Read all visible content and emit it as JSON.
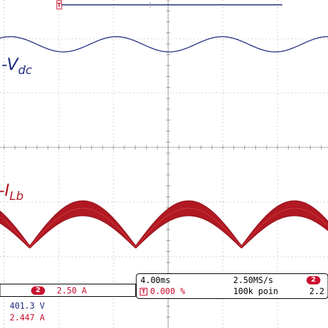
{
  "colors": {
    "background": "#ffffff",
    "grid": "#9a9a9a",
    "ch1": "#1f2a80",
    "ch2": "#b01822",
    "badge": "#c8102e",
    "hud_border": "#000000",
    "readout_blue": "#1f2a80",
    "readout_red": "#c8102e"
  },
  "traces": {
    "vdc": {
      "prefix": "-V",
      "sub": "dc"
    },
    "ilb": {
      "prefix": "-I",
      "sub": "Lb"
    }
  },
  "hud": {
    "ch2_badge": "2",
    "ch2_scale": "2.50 A",
    "timebase": "4.00ms",
    "sample_rate": "2.50MS/s",
    "trigger_icon": "T",
    "trigger_position": "0.000 %",
    "record_length": "100k poin",
    "trigger_source_badge": "2",
    "trigger_level": "2.2"
  },
  "readouts": {
    "voltage": "401.3 V",
    "current": "2.447 A"
  },
  "icons": {
    "trigger_marker": "trigger-position-marker-icon",
    "trigger_box": "trigger-icon"
  }
}
